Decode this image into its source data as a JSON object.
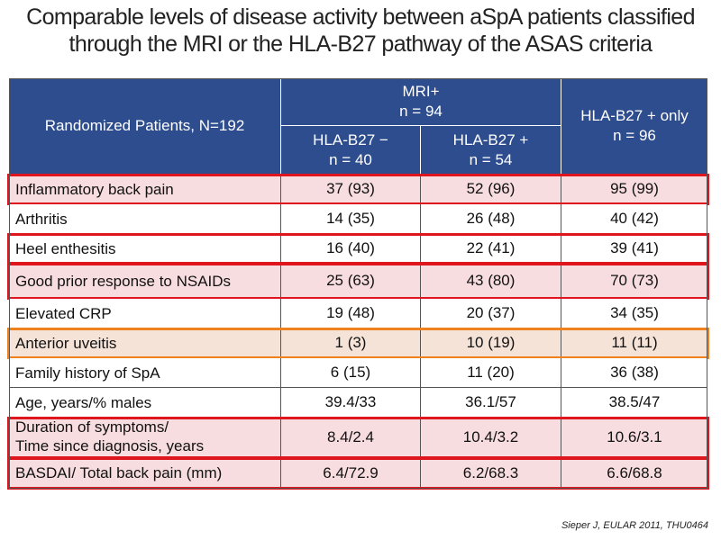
{
  "title": {
    "line1": "Comparable levels of disease activity between aSpA patients classified",
    "line2": "through the MRI or the HLA-B27 pathway of the ASAS criteria"
  },
  "table": {
    "header": {
      "col0": "Randomized Patients, N=192",
      "mri_group_line1": "MRI+",
      "mri_group_line2": "n = 94",
      "sub1_line1": "HLA-B27 −",
      "sub1_line2": "n = 40",
      "sub2_line1": "HLA-B27 +",
      "sub2_line2": "n = 54",
      "col3_line1": "HLA-B27 + only",
      "col3_line2": "n = 96"
    },
    "rows": [
      {
        "label": "Inflammatory back pain",
        "v1": "37 (93)",
        "v2": "52 (96)",
        "v3": "95 (99)"
      },
      {
        "label": "Arthritis",
        "v1": "14 (35)",
        "v2": "26 (48)",
        "v3": "40 (42)"
      },
      {
        "label": "Heel enthesitis",
        "v1": "16 (40)",
        "v2": "22 (41)",
        "v3": "39 (41)"
      },
      {
        "label": "Good prior response to NSAIDs",
        "v1": "25 (63)",
        "v2": "43 (80)",
        "v3": "70 (73)"
      },
      {
        "label": "Elevated CRP",
        "v1": "19 (48)",
        "v2": "20 (37)",
        "v3": "34 (35)"
      },
      {
        "label": "Anterior uveitis",
        "v1": "1 (3)",
        "v2": "10 (19)",
        "v3": "11 (11)"
      },
      {
        "label": "Family history of SpA",
        "v1": "6 (15)",
        "v2": "11 (20)",
        "v3": "36 (38)"
      },
      {
        "label": "Age, years/% males",
        "v1": "39.4/33",
        "v2": "36.1/57",
        "v3": "38.5/47"
      },
      {
        "label_line1": "Duration of symptoms/",
        "label_line2": "Time since diagnosis, years",
        "v1": "8.4/2.4",
        "v2": "10.4/3.2",
        "v3": "10.6/3.1"
      },
      {
        "label": "BASDAI/ Total back pain (mm)",
        "v1": "6.4/72.9",
        "v2": "6.2/68.3",
        "v3": "6.6/68.8"
      }
    ]
  },
  "colors": {
    "header_bg": "#2e4d8e",
    "highlight_red": "#e0161e",
    "highlight_orange": "#f0821e",
    "shade_red": "#f7dde0",
    "shade_orange": "#f5e3d8"
  },
  "footer": "Sieper J, EULAR 2011, THU0464"
}
